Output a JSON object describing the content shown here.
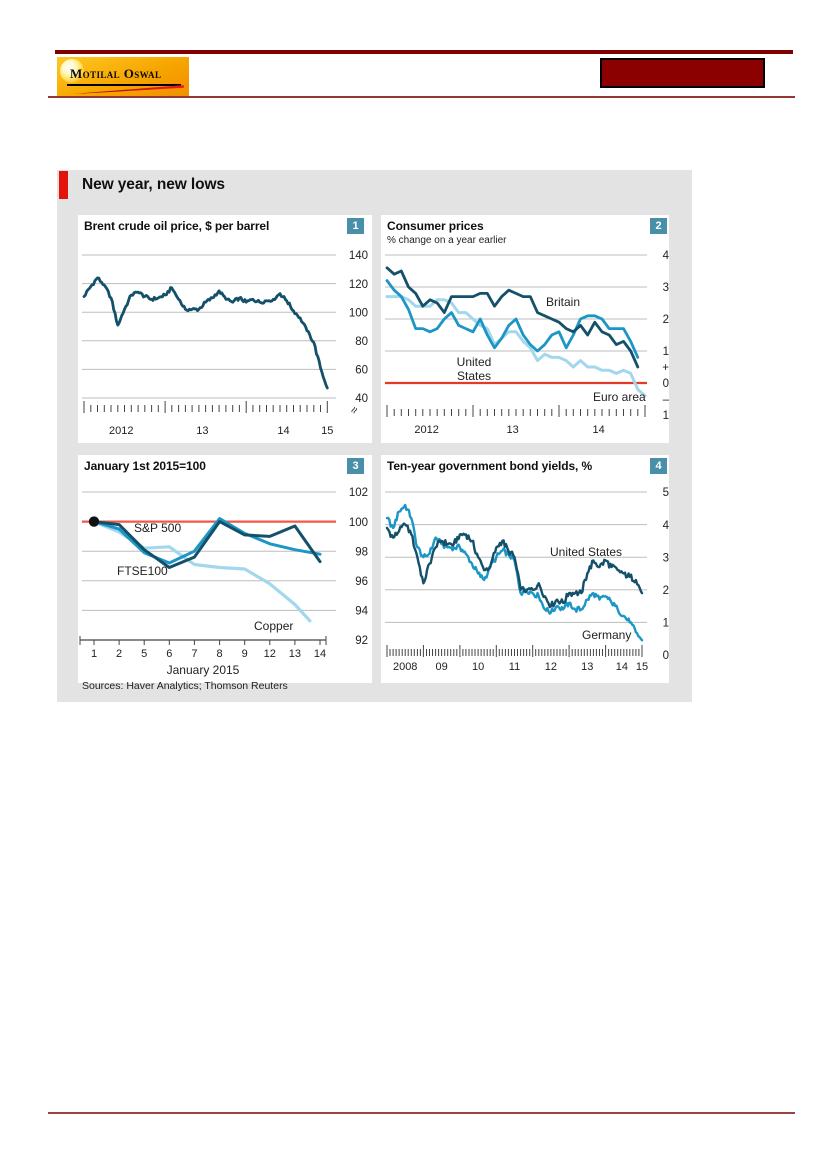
{
  "page": {
    "header": {
      "logo_text": "Motilal Oswal",
      "brand_orange": "#f7a600",
      "maroon": "#7f0000",
      "rule_color": "#953735"
    }
  },
  "figure": {
    "title": "New year, new lows",
    "accent_color": "#e3120b",
    "badge_color": "#4a8fa9",
    "sources": "Sources: Haver Analytics; Thomson Reuters"
  },
  "chart_data": [
    {
      "badge": "1",
      "title": "Brent crude oil price, $ per barrel",
      "type": "line",
      "ylim": [
        40,
        140
      ],
      "yticks": [
        {
          "v": 140,
          "label": "140"
        },
        {
          "v": 120,
          "label": "120"
        },
        {
          "v": 100,
          "label": "100"
        },
        {
          "v": 80,
          "label": "80"
        },
        {
          "v": 60,
          "label": "60"
        },
        {
          "v": 40,
          "label": "40"
        }
      ],
      "ygrid": [
        140,
        120,
        100,
        80,
        60,
        40
      ],
      "axis_break": true,
      "x_axis": {
        "type": "monthly",
        "from": 2012,
        "to": 2015,
        "domain": [
          2012,
          2015.083
        ],
        "labels": [
          {
            "label": "2012",
            "at": 2012.46
          },
          {
            "label": "13",
            "at": 2013.46
          },
          {
            "label": "14",
            "at": 2014.46
          },
          {
            "label": "15",
            "at": 2015.0
          }
        ]
      },
      "series": [
        {
          "name": "Brent crude",
          "color": "#14506a",
          "width": 2.8,
          "x_start": 2012,
          "x_step": 0.08333,
          "jitter": 1.2,
          "seed": 3,
          "values": [
            111,
            118,
            124,
            119,
            110,
            91,
            102,
            112,
            114,
            111,
            109,
            110,
            112,
            117,
            109,
            102,
            102,
            102,
            107,
            110,
            115,
            109,
            107,
            110,
            107,
            109,
            107,
            108,
            109,
            113,
            108,
            101,
            96,
            87,
            79,
            61,
            47
          ]
        }
      ],
      "annotations": []
    },
    {
      "badge": "2",
      "title": "Consumer prices",
      "subtitle": "% change on a year earlier",
      "type": "line",
      "ylim": [
        -1,
        4
      ],
      "yticks": [
        {
          "v": 4,
          "label": "4"
        },
        {
          "v": 3,
          "label": "3"
        },
        {
          "v": 2,
          "label": "2"
        },
        {
          "v": 1,
          "label": "1"
        },
        {
          "v": 0.5,
          "label": "+"
        },
        {
          "v": 0,
          "label": "0"
        },
        {
          "v": -0.5,
          "label": "–"
        },
        {
          "v": -1,
          "label": "1"
        }
      ],
      "ygrid": [
        4,
        3,
        2,
        1
      ],
      "red_line": {
        "v": 0,
        "color": "#e23a28"
      },
      "x_axis": {
        "type": "monthly",
        "from": 2012,
        "to": 2015,
        "domain": [
          2012,
          2015.0
        ],
        "labels": [
          {
            "label": "2012",
            "at": 2012.46
          },
          {
            "label": "13",
            "at": 2013.46
          },
          {
            "label": "14",
            "at": 2014.46
          }
        ]
      },
      "series": [
        {
          "name": "Euro area",
          "color": "#a2d7ee",
          "width": 3,
          "x_start": 2012,
          "x_step": 0.08333,
          "values": [
            2.7,
            2.7,
            2.7,
            2.6,
            2.4,
            2.4,
            2.4,
            2.6,
            2.6,
            2.5,
            2.2,
            2.2,
            2.0,
            1.8,
            1.7,
            1.2,
            1.4,
            1.6,
            1.6,
            1.3,
            1.1,
            0.7,
            0.9,
            0.8,
            0.8,
            0.7,
            0.5,
            0.7,
            0.5,
            0.5,
            0.4,
            0.4,
            0.3,
            0.4,
            0.3,
            -0.2,
            -0.4
          ]
        },
        {
          "name": "United States",
          "color": "#1b96c5",
          "width": 2.8,
          "x_start": 2012,
          "x_step": 0.08333,
          "values": [
            3.2,
            2.9,
            2.7,
            2.3,
            1.7,
            1.7,
            1.6,
            1.7,
            2.0,
            2.2,
            1.8,
            1.7,
            1.6,
            2.0,
            1.5,
            1.1,
            1.4,
            1.8,
            2.0,
            1.5,
            1.2,
            1.0,
            1.2,
            1.5,
            1.6,
            1.1,
            1.5,
            2.0,
            2.1,
            2.1,
            2.0,
            1.7,
            1.7,
            1.7,
            1.3,
            0.8
          ]
        },
        {
          "name": "Britain",
          "color": "#14506a",
          "width": 2.8,
          "x_start": 2012,
          "x_step": 0.08333,
          "values": [
            3.6,
            3.4,
            3.5,
            3.0,
            2.8,
            2.4,
            2.6,
            2.5,
            2.2,
            2.7,
            2.7,
            2.7,
            2.7,
            2.8,
            2.8,
            2.4,
            2.7,
            2.9,
            2.8,
            2.7,
            2.7,
            2.2,
            2.1,
            2.0,
            1.9,
            1.7,
            1.6,
            1.8,
            1.5,
            1.9,
            1.6,
            1.5,
            1.2,
            1.3,
            1.0,
            0.5
          ]
        }
      ],
      "annotations": [
        {
          "text": "Britain",
          "x": 165,
          "y": 91,
          "anchor": "start"
        },
        {
          "lines": [
            "United",
            "States"
          ],
          "x": 93,
          "y": 151,
          "anchor": "middle"
        },
        {
          "text": "Euro area",
          "x": 212,
          "y": 186,
          "anchor": "start"
        }
      ]
    },
    {
      "badge": "3",
      "title": "January 1st 2015=100",
      "type": "line",
      "ylim": [
        92,
        102
      ],
      "yticks": [
        {
          "v": 102,
          "label": "102"
        },
        {
          "v": 100,
          "label": "100"
        },
        {
          "v": 98,
          "label": "98"
        },
        {
          "v": 96,
          "label": "96"
        },
        {
          "v": 94,
          "label": "94"
        },
        {
          "v": 92,
          "label": "92"
        }
      ],
      "ygrid": [
        102,
        98,
        96,
        94
      ],
      "red_line": {
        "v": 100,
        "color": "#f0594a"
      },
      "marker": {
        "xi": 0,
        "v": 100,
        "color": "#111111"
      },
      "x_axis": {
        "type": "days",
        "categories": [
          "1",
          "2",
          "5",
          "6",
          "7",
          "8",
          "9",
          "12",
          "13",
          "14"
        ],
        "xlabel": "January 2015"
      },
      "series": [
        {
          "name": "Copper",
          "color": "#a2d7ee",
          "width": 3.2,
          "xi": [
            0,
            1,
            2,
            3,
            4,
            5,
            6,
            7,
            8,
            8.6
          ],
          "values": [
            100,
            99.3,
            98.2,
            98.3,
            97.1,
            96.9,
            96.8,
            95.8,
            94.4,
            93.3
          ]
        },
        {
          "name": "FTSE 100",
          "color": "#1b96c5",
          "width": 3,
          "xi": [
            0,
            1,
            2,
            3,
            4,
            5,
            6,
            7,
            8,
            9
          ],
          "values": [
            100,
            99.5,
            97.9,
            97.2,
            98.0,
            100.2,
            99.2,
            98.5,
            98.1,
            97.8
          ]
        },
        {
          "name": "S&P 500",
          "color": "#14506a",
          "width": 3,
          "xi": [
            0,
            1,
            2,
            3,
            4,
            5,
            6,
            7,
            8,
            9
          ],
          "values": [
            100,
            99.8,
            98.1,
            96.9,
            97.6,
            100.0,
            99.1,
            99.0,
            99.7,
            97.3
          ]
        }
      ],
      "annotations": [
        {
          "text": "S&P 500",
          "x": 56,
          "y": 77,
          "anchor": "start"
        },
        {
          "text": "FTSE100",
          "x": 39,
          "y": 120,
          "anchor": "start"
        },
        {
          "text": "Copper",
          "x": 176,
          "y": 175,
          "anchor": "start"
        }
      ]
    },
    {
      "badge": "4",
      "title": "Ten-year government bond yields, %",
      "type": "line",
      "ylim": [
        0,
        5
      ],
      "yticks": [
        {
          "v": 5,
          "label": "5"
        },
        {
          "v": 4,
          "label": "4"
        },
        {
          "v": 3,
          "label": "3"
        },
        {
          "v": 2,
          "label": "2"
        },
        {
          "v": 1,
          "label": "1"
        },
        {
          "v": 0,
          "label": "0"
        }
      ],
      "ygrid": [
        5,
        4,
        3,
        2,
        1
      ],
      "x_axis": {
        "type": "monthly",
        "from": 2008,
        "to": 2015,
        "domain": [
          2008,
          2015.083
        ],
        "labels": [
          {
            "label": "2008",
            "at": 2008.5
          },
          {
            "label": "09",
            "at": 2009.5
          },
          {
            "label": "10",
            "at": 2010.5
          },
          {
            "label": "11",
            "at": 2011.5
          },
          {
            "label": "12",
            "at": 2012.5
          },
          {
            "label": "13",
            "at": 2013.5
          },
          {
            "label": "14",
            "at": 2014.45
          },
          {
            "label": "15",
            "at": 2015.0
          }
        ]
      },
      "series": [
        {
          "name": "Germany",
          "color": "#1b96c5",
          "width": 2.4,
          "x_start": 2008,
          "x_step": 0.16667,
          "jitter": 0.09,
          "seed": 19,
          "values": [
            4.2,
            3.9,
            4.4,
            4.6,
            4.2,
            3.3,
            3.0,
            3.1,
            3.6,
            3.4,
            3.3,
            3.3,
            3.3,
            3.1,
            2.8,
            2.5,
            2.3,
            2.7,
            3.0,
            3.2,
            3.1,
            2.9,
            1.9,
            2.0,
            1.9,
            1.8,
            1.4,
            1.3,
            1.5,
            1.4,
            1.6,
            1.4,
            1.4,
            1.7,
            1.9,
            1.7,
            1.8,
            1.6,
            1.4,
            1.2,
            1.0,
            0.7,
            0.45
          ]
        },
        {
          "name": "United States",
          "color": "#14506a",
          "width": 2.4,
          "x_start": 2008,
          "x_step": 0.16667,
          "jitter": 0.1,
          "seed": 7,
          "values": [
            3.9,
            3.6,
            3.8,
            4.0,
            3.7,
            3.0,
            2.2,
            2.8,
            3.3,
            3.5,
            3.4,
            3.4,
            3.7,
            3.7,
            3.5,
            3.0,
            2.6,
            2.7,
            3.3,
            3.5,
            3.2,
            3.0,
            2.0,
            2.0,
            2.0,
            2.2,
            1.8,
            1.5,
            1.7,
            1.6,
            1.9,
            1.9,
            1.9,
            2.5,
            2.9,
            2.7,
            2.9,
            2.7,
            2.6,
            2.5,
            2.4,
            2.3,
            1.9
          ]
        }
      ],
      "annotations": [
        {
          "text": "United States",
          "x": 169,
          "y": 101,
          "anchor": "start"
        },
        {
          "text": "Germany",
          "x": 201,
          "y": 184,
          "anchor": "start"
        }
      ]
    }
  ]
}
